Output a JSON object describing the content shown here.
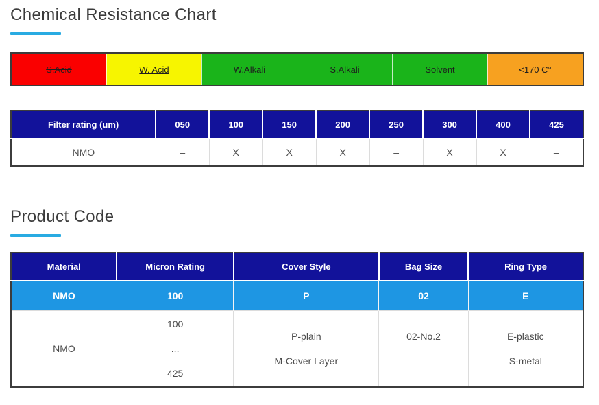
{
  "sections": {
    "chemical_resistance": {
      "title": "Chemical Resistance Chart"
    },
    "product_code": {
      "title": "Product Code"
    }
  },
  "resistance_bar": {
    "segments": [
      {
        "label": "S.Acid",
        "color": "#fa0000",
        "text_decoration": "line-through"
      },
      {
        "label": "W. Acid",
        "color": "#f7f500",
        "text_decoration": "underline"
      },
      {
        "label": "W.Alkali",
        "color": "#1ab41a",
        "text_decoration": "none"
      },
      {
        "label": "S.Alkali",
        "color": "#1ab41a",
        "text_decoration": "none"
      },
      {
        "label": "Solvent",
        "color": "#1ab41a",
        "text_decoration": "none"
      },
      {
        "label": "<170 C°",
        "color": "#f7a120",
        "text_decoration": "none"
      }
    ]
  },
  "filter_table": {
    "headers": [
      "Filter rating (um)",
      "050",
      "100",
      "150",
      "200",
      "250",
      "300",
      "400",
      "425"
    ],
    "row": [
      "NMO",
      "–",
      "X",
      "X",
      "X",
      "–",
      "X",
      "X",
      "–"
    ]
  },
  "product_table": {
    "headers": [
      "Material",
      "Micron Rating",
      "Cover Style",
      "Bag Size",
      "Ring Type"
    ],
    "code_row": [
      "NMO",
      "100",
      "P",
      "02",
      "E"
    ],
    "detail_row": {
      "material": [
        "NMO"
      ],
      "micron_rating": [
        "100",
        "...",
        "425"
      ],
      "cover_style": [
        "P-plain",
        "M-Cover Layer"
      ],
      "bag_size": [
        "02-No.2"
      ],
      "ring_type": [
        "E-plastic",
        "S-metal"
      ]
    }
  },
  "colors": {
    "accent_underline": "#29abe2",
    "table_header_bg": "#12129a",
    "product_code_row_bg": "#1e96e3",
    "border_dark": "#3c3c3c",
    "heading_text": "#3b3b3b",
    "body_text": "#4c4c4c"
  }
}
